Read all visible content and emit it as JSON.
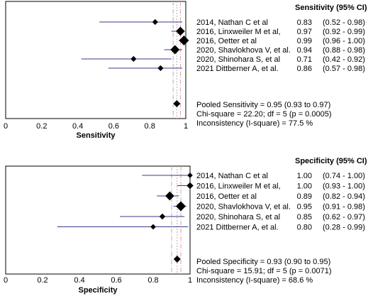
{
  "chart_data": [
    {
      "type": "forest",
      "column_header": "Sensitivity (95% CI)",
      "xlabel": "Sensitivity",
      "xlim": [
        0,
        1
      ],
      "x_ticks": [
        "0",
        "0.2",
        "0.4",
        "0.6",
        "0.8",
        "1"
      ],
      "studies": [
        {
          "label": "2014, Nathan C et al",
          "est_text": "0.83",
          "ci_text": "(0.52 - 0.98)",
          "est": 0.83,
          "lo": 0.52,
          "hi": 0.98,
          "weight": 0.35
        },
        {
          "label": "2016, Linxweiler M et al,",
          "est_text": "0.97",
          "ci_text": "(0.92 - 0.99)",
          "est": 0.97,
          "lo": 0.92,
          "hi": 0.99,
          "weight": 0.85
        },
        {
          "label": "2016, Oetter et al",
          "est_text": "0.99",
          "ci_text": "(0.96 - 1.00)",
          "est": 0.99,
          "lo": 0.96,
          "hi": 1.0,
          "weight": 1.0
        },
        {
          "label": "2020, Shavlokhova V, et al.",
          "est_text": "0.94",
          "ci_text": "(0.88 - 0.98)",
          "est": 0.94,
          "lo": 0.88,
          "hi": 0.98,
          "weight": 0.9
        },
        {
          "label": "2020, Shinohara S, et al",
          "est_text": "0.71",
          "ci_text": "(0.42 - 0.92)",
          "est": 0.71,
          "lo": 0.42,
          "hi": 0.92,
          "weight": 0.35
        },
        {
          "label": "2021 Dittberner A, et al.",
          "est_text": "0.86",
          "ci_text": "(0.57 - 0.98)",
          "est": 0.86,
          "lo": 0.57,
          "hi": 0.98,
          "weight": 0.35
        }
      ],
      "pooled": {
        "est": 0.95,
        "lo": 0.93,
        "hi": 0.97
      },
      "summary_lines": [
        "Pooled Sensitivity = 0.95 (0.93 to 0.97)",
        "Chi-square = 22.20; df =  5 (p = 0.0005)",
        "Inconsistency (I-square) = 77.5 %"
      ]
    },
    {
      "type": "forest",
      "column_header": "Specificity (95% CI)",
      "xlabel": "Specificity",
      "xlim": [
        0,
        1
      ],
      "x_ticks": [
        "0",
        "0.2",
        "0.4",
        "0.6",
        "0.8",
        "1"
      ],
      "studies": [
        {
          "label": "2014, Nathan C et al",
          "est_text": "1.00",
          "ci_text": "(0.74 - 1.00)",
          "est": 1.0,
          "lo": 0.74,
          "hi": 1.0,
          "weight": 0.3
        },
        {
          "label": "2016, Linxweiler M et al,",
          "est_text": "1.00",
          "ci_text": "(0.93 - 1.00)",
          "est": 1.0,
          "lo": 0.93,
          "hi": 1.0,
          "weight": 0.5
        },
        {
          "label": "2016, Oetter et al",
          "est_text": "0.89",
          "ci_text": "(0.82 - 0.94)",
          "est": 0.89,
          "lo": 0.82,
          "hi": 0.94,
          "weight": 0.85
        },
        {
          "label": "2020, Shavlokhova V, et al.",
          "est_text": "0.95",
          "ci_text": "(0.91 - 0.98)",
          "est": 0.95,
          "lo": 0.91,
          "hi": 0.98,
          "weight": 1.0
        },
        {
          "label": "2020, Shinohara S, et al",
          "est_text": "0.85",
          "ci_text": "(0.62 - 0.97)",
          "est": 0.85,
          "lo": 0.62,
          "hi": 0.97,
          "weight": 0.4
        },
        {
          "label": "2021 Dittberner A, et al.",
          "est_text": "0.80",
          "ci_text": "(0.28 - 0.99)",
          "est": 0.8,
          "lo": 0.28,
          "hi": 0.99,
          "weight": 0.3
        }
      ],
      "pooled": {
        "est": 0.93,
        "lo": 0.9,
        "hi": 0.95
      },
      "summary_lines": [
        "Pooled Specificity = 0.93 (0.90 to 0.95)",
        "Chi-square = 15.91; df =  5 (p = 0.0071)",
        "Inconsistency (I-square) = 68.6 %"
      ]
    }
  ],
  "colors": {
    "ci_line": "#3a3a8c",
    "marker": "#000000",
    "pooled_line": "#d9a0a0",
    "frame": "#000000"
  }
}
